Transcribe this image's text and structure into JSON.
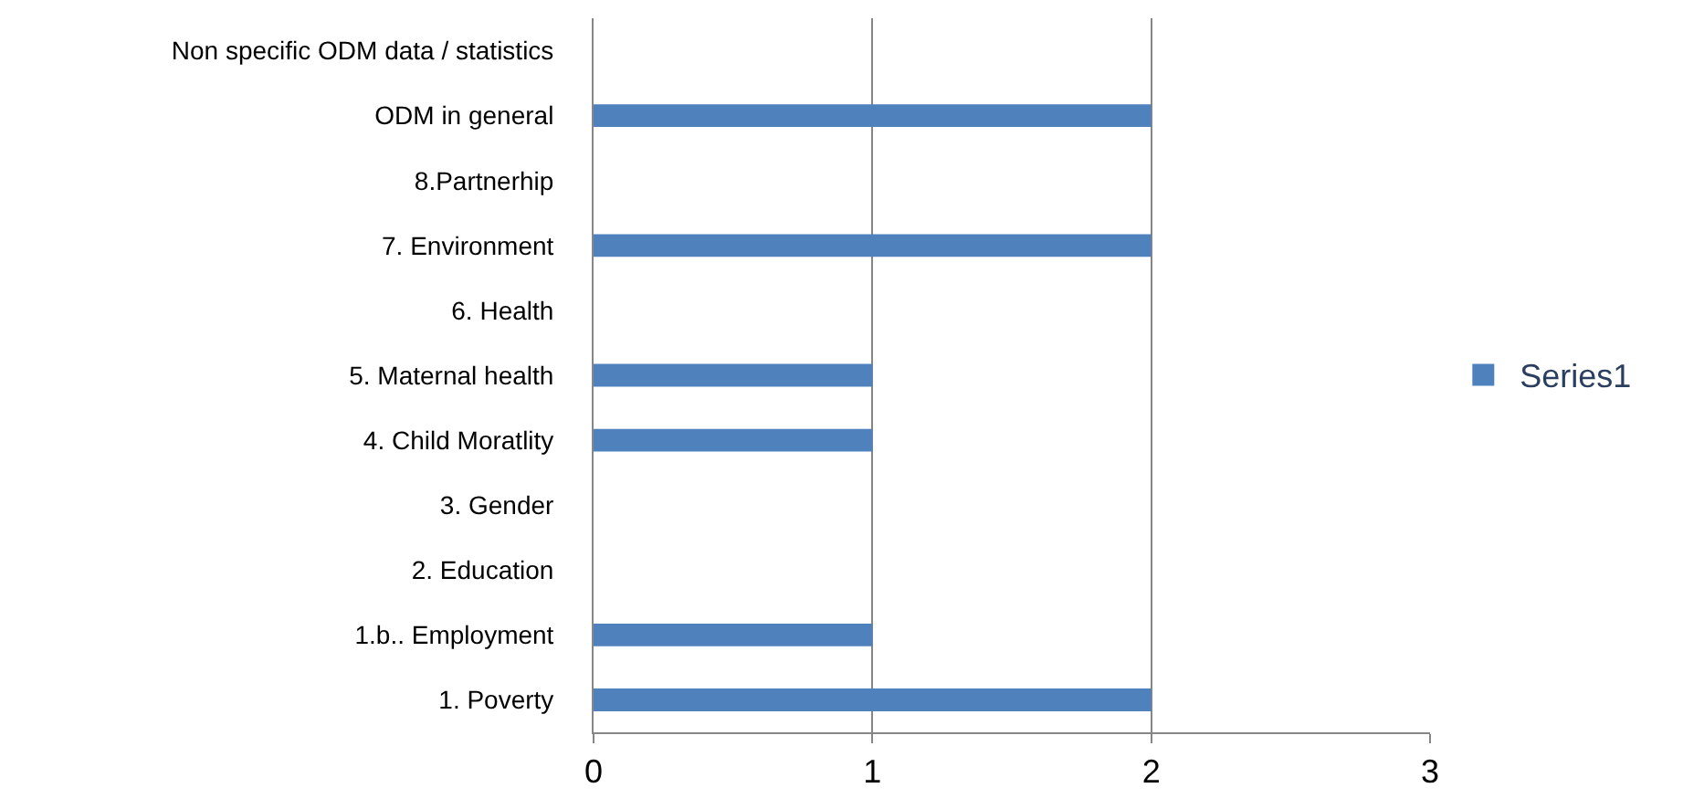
{
  "chart_data": {
    "type": "bar",
    "orientation": "horizontal",
    "categories": [
      "Non specific ODM data / statistics",
      "ODM in general",
      "8.Partnerhip",
      "7. Environment",
      "6. Health",
      "5. Maternal health",
      "4. Child Moratlity",
      "3. Gender",
      "2. Education",
      "1.b.. Employment",
      "1. Poverty"
    ],
    "series": [
      {
        "name": "Series1",
        "color": "#4f81bd",
        "values": [
          0,
          2,
          0,
          2,
          0,
          1,
          1,
          0,
          0,
          1,
          2
        ]
      }
    ],
    "xlim": [
      0,
      3
    ],
    "xticks": [
      0,
      1,
      2,
      3
    ],
    "grid": "x",
    "legend": "right"
  }
}
